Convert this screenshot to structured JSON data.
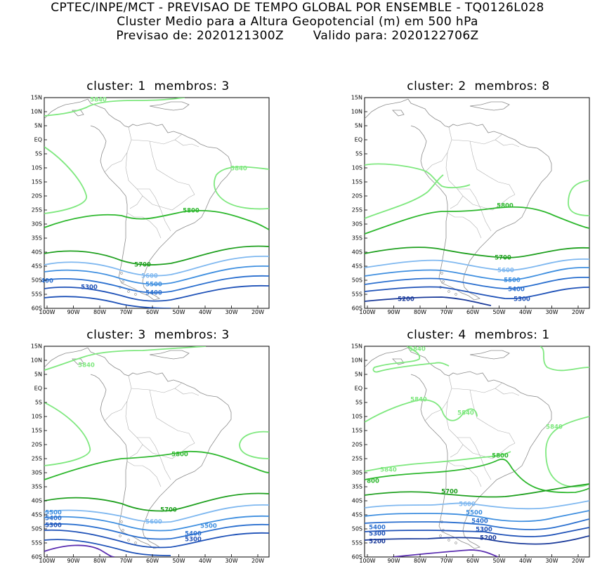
{
  "header": {
    "line1": "CPTEC/INPE/MCT - PREVISAO DE TEMPO GLOBAL POR ENSEMBLE - TQ0126L028",
    "line2": "Cluster Medio para a Altura Geopotencial (m) em 500 hPa",
    "line3_prev_label": "Previsao de: 2020121300Z",
    "line3_valid_label": "Valido para: 2020122706Z"
  },
  "axes": {
    "lat_ticks": [
      "15N",
      "10N",
      "5N",
      "EQ",
      "5S",
      "10S",
      "15S",
      "20S",
      "25S",
      "30S",
      "35S",
      "40S",
      "45S",
      "50S",
      "55S",
      "60S"
    ],
    "lon_ticks": [
      "100W",
      "90W",
      "80W",
      "70W",
      "60W",
      "50W",
      "40W",
      "30W",
      "20W"
    ]
  },
  "colors": {
    "c5840": "#7fe87f",
    "c5800": "#2eb82e",
    "c5700": "#1fa01f",
    "c5600": "#7fb8f0",
    "c5500": "#3f8fe0",
    "c5400": "#2a6fcf",
    "c5300": "#1f52b8",
    "c5200": "#1a3a9a",
    "c5100": "#5a2db0",
    "coast": "#8c8c8c"
  },
  "panels": [
    {
      "title_cluster": "cluster: 1",
      "title_members": "membros: 3",
      "labels": [
        {
          "text": "5840",
          "level": "c5840"
        },
        {
          "text": "5840",
          "level": "c5840"
        },
        {
          "text": "5800",
          "level": "c5800"
        },
        {
          "text": "5700",
          "level": "c5700"
        },
        {
          "text": "5600",
          "level": "c5600"
        },
        {
          "text": "5500",
          "level": "c5500"
        },
        {
          "text": "5400",
          "level": "c5400"
        },
        {
          "text": "400",
          "level": "c5400"
        },
        {
          "text": "5300",
          "level": "c5300"
        }
      ]
    },
    {
      "title_cluster": "cluster: 2",
      "title_members": "membros: 8",
      "labels": [
        {
          "text": "5800",
          "level": "c5800"
        },
        {
          "text": "5700",
          "level": "c5700"
        },
        {
          "text": "5600",
          "level": "c5600"
        },
        {
          "text": "5500",
          "level": "c5500"
        },
        {
          "text": "5400",
          "level": "c5400"
        },
        {
          "text": "5300",
          "level": "c5300"
        },
        {
          "text": "5200",
          "level": "c5200"
        }
      ]
    },
    {
      "title_cluster": "cluster: 3",
      "title_members": "membros: 3",
      "labels": [
        {
          "text": "5840",
          "level": "c5840"
        },
        {
          "text": "5800",
          "level": "c5800"
        },
        {
          "text": "5700",
          "level": "c5700"
        },
        {
          "text": "5600",
          "level": "c5600"
        },
        {
          "text": "5500",
          "level": "c5500"
        },
        {
          "text": "5500",
          "level": "c5500"
        },
        {
          "text": "5400",
          "level": "c5400"
        },
        {
          "text": "5400",
          "level": "c5400"
        },
        {
          "text": "5300",
          "level": "c5300"
        },
        {
          "text": "5300",
          "level": "c5300"
        }
      ]
    },
    {
      "title_cluster": "cluster: 4",
      "title_members": "membros: 1",
      "labels": [
        {
          "text": "5840",
          "level": "c5840"
        },
        {
          "text": "5840",
          "level": "c5840"
        },
        {
          "text": "5840",
          "level": "c5840"
        },
        {
          "text": "5840",
          "level": "c5840"
        },
        {
          "text": "5840",
          "level": "c5840"
        },
        {
          "text": "5800",
          "level": "c5800"
        },
        {
          "text": "800",
          "level": "c5800"
        },
        {
          "text": "5700",
          "level": "c5700"
        },
        {
          "text": "5600",
          "level": "c5600"
        },
        {
          "text": "5500",
          "level": "c5500"
        },
        {
          "text": "5400",
          "level": "c5400"
        },
        {
          "text": "5400",
          "level": "c5400"
        },
        {
          "text": "5300",
          "level": "c5300"
        },
        {
          "text": "5300",
          "level": "c5300"
        },
        {
          "text": "5200",
          "level": "c5200"
        },
        {
          "text": "5200",
          "level": "c5200"
        }
      ]
    }
  ]
}
